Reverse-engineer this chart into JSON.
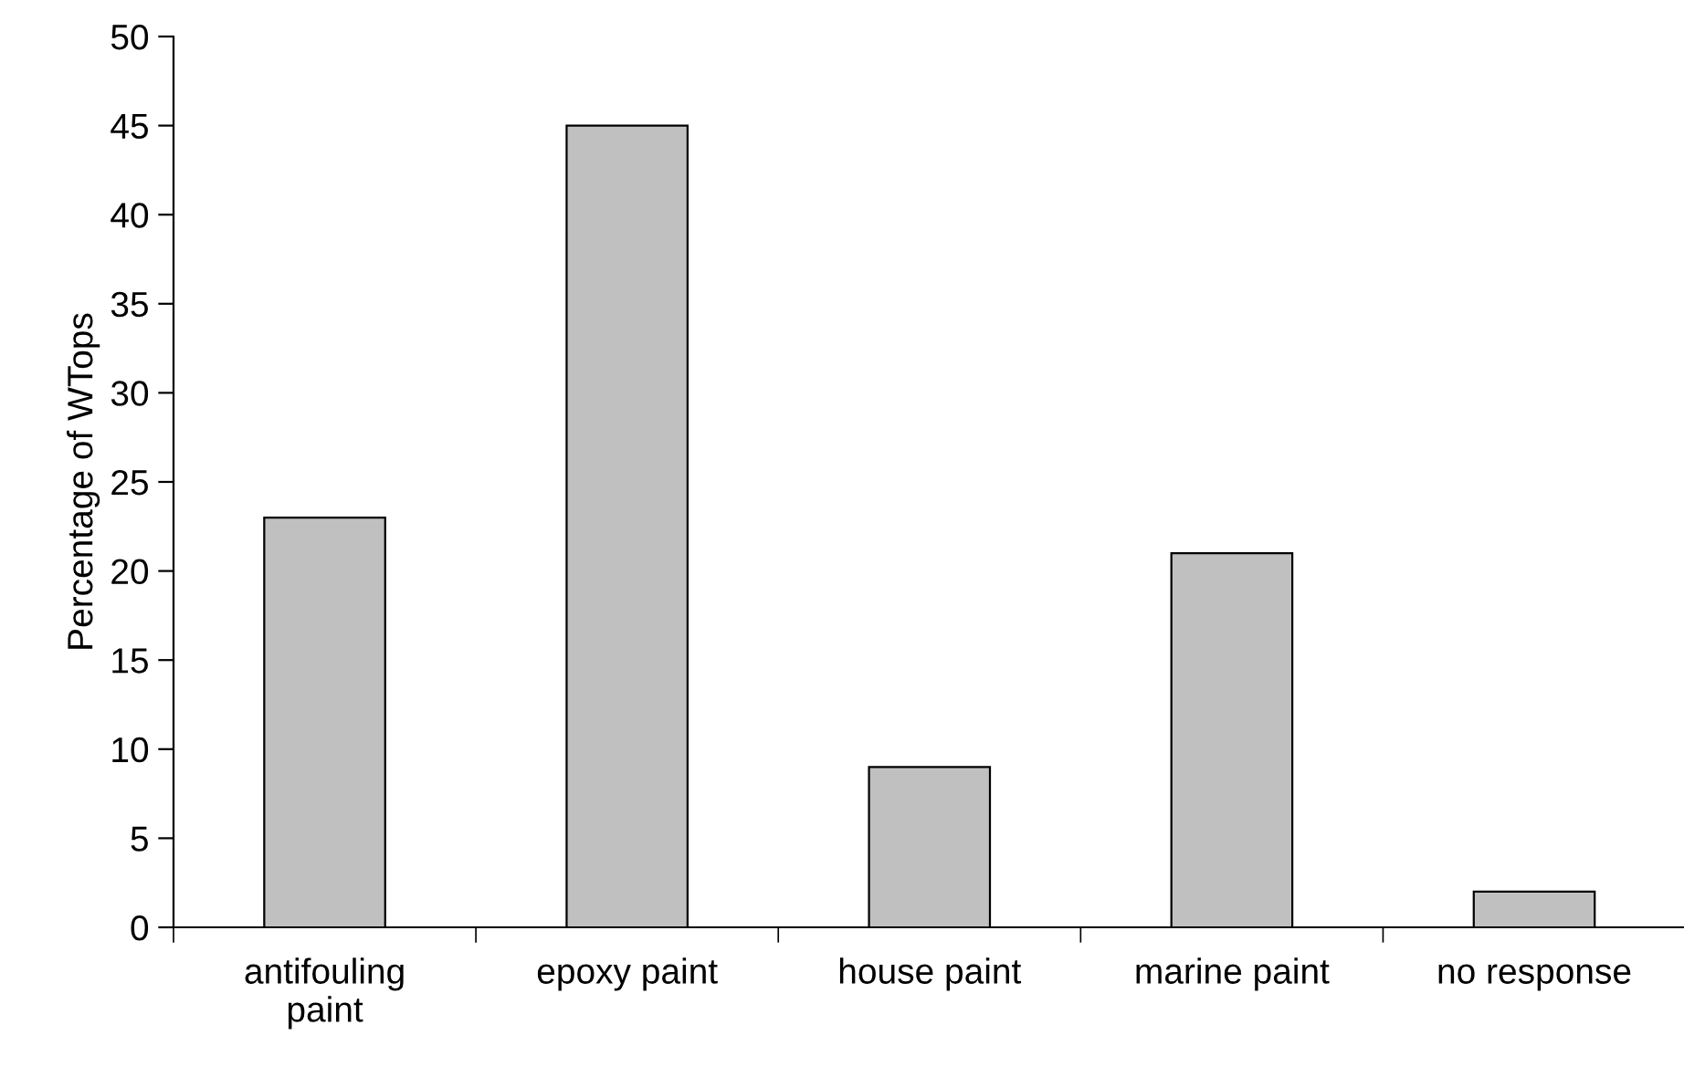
{
  "chart_data": {
    "type": "bar",
    "ylabel": "Percentage of WTops",
    "categories": [
      "antifouling\npaint",
      "epoxy paint",
      "house paint",
      "marine paint",
      "no response"
    ],
    "values": [
      23,
      45,
      9,
      21,
      2
    ],
    "color": "#c0c0c0",
    "ylim": [
      0,
      50
    ],
    "yticks": [
      0,
      5,
      10,
      15,
      20,
      25,
      30,
      35,
      40,
      45,
      50
    ],
    "grid": false,
    "legend": false
  }
}
